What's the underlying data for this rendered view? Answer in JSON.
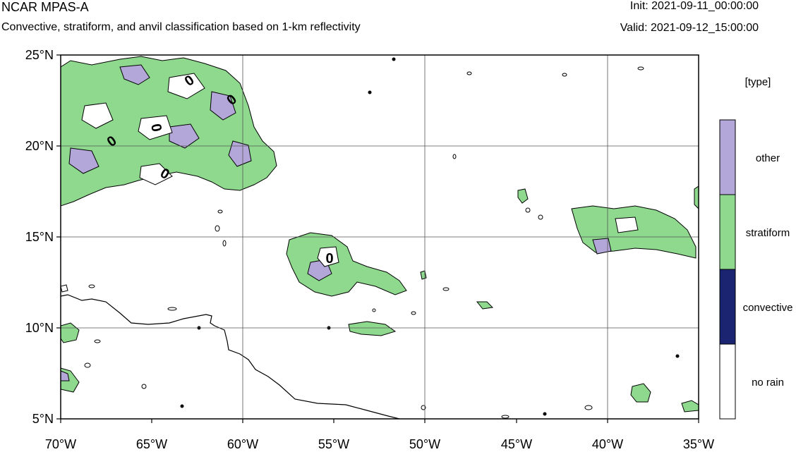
{
  "header": {
    "title": "NCAR MPAS-A",
    "subtitle": "Convective, stratiform, and anvil classification based on 1-km reflectivity",
    "init": "Init: 2021-09-11_00:00:00",
    "valid": "Valid: 2021-09-12_15:00:00"
  },
  "map": {
    "lon_range": [
      -70,
      -35
    ],
    "lat_range": [
      5,
      25
    ],
    "lat_ticks": [
      {
        "value": 25,
        "label": "25°N"
      },
      {
        "value": 20,
        "label": "20°N"
      },
      {
        "value": 15,
        "label": "15°N"
      },
      {
        "value": 10,
        "label": "10°N"
      },
      {
        "value": 5,
        "label": "5°N"
      }
    ],
    "lon_ticks": [
      {
        "value": -70,
        "label": "70°W"
      },
      {
        "value": -65,
        "label": "65°W"
      },
      {
        "value": -60,
        "label": "60°W"
      },
      {
        "value": -55,
        "label": "55°W"
      },
      {
        "value": -50,
        "label": "50°W"
      },
      {
        "value": -45,
        "label": "45°W"
      },
      {
        "value": -40,
        "label": "40°W"
      },
      {
        "value": -35,
        "label": "35°W"
      }
    ],
    "contour_label": "0"
  },
  "legend": {
    "title": "[type]",
    "items": [
      {
        "label": "other",
        "color": "#b3a6d9"
      },
      {
        "label": "stratiform",
        "color": "#8ed98e"
      },
      {
        "label": "convective",
        "color": "#1a2470"
      },
      {
        "label": "no rain",
        "color": "#ffffff"
      }
    ]
  },
  "colors": {
    "other": "#b3a6d9",
    "stratiform": "#8ed98e",
    "convective": "#1a2470",
    "no_rain": "#ffffff"
  }
}
